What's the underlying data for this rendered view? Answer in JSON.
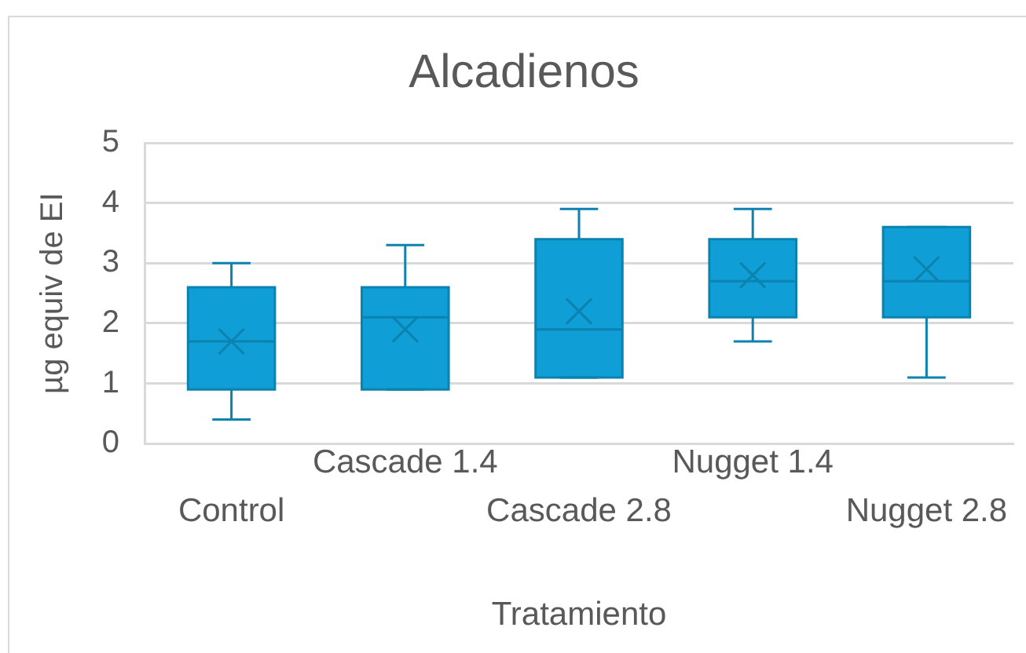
{
  "chart_data": {
    "type": "box",
    "title": "Alcadienos",
    "xlabel": "Tratamiento",
    "ylabel": "µg equiv de EI",
    "categories": [
      "Control",
      "Cascade 1.4",
      "Cascade 2.8",
      "Nugget 1.4",
      "Nugget 2.8"
    ],
    "series": [
      {
        "color": "#0f9ed5",
        "boxes": [
          {
            "low": 0.4,
            "q1": 0.9,
            "median": 1.7,
            "q3": 2.6,
            "high": 3.0,
            "mean": 1.7
          },
          {
            "low": 0.9,
            "q1": 0.9,
            "median": 2.1,
            "q3": 2.6,
            "high": 3.3,
            "mean": 1.9
          },
          {
            "low": 1.1,
            "q1": 1.1,
            "median": 1.9,
            "q3": 3.4,
            "high": 3.9,
            "mean": 2.2
          },
          {
            "low": 1.7,
            "q1": 2.1,
            "median": 2.7,
            "q3": 3.4,
            "high": 3.9,
            "mean": 2.8
          },
          {
            "low": 1.1,
            "q1": 2.1,
            "median": 2.7,
            "q3": 3.6,
            "high": 3.6,
            "mean": 2.9
          }
        ]
      }
    ],
    "ylim": [
      0,
      5
    ],
    "yticks": [
      0,
      1,
      2,
      3,
      4,
      5
    ],
    "grid": "y",
    "marker": "cross"
  }
}
